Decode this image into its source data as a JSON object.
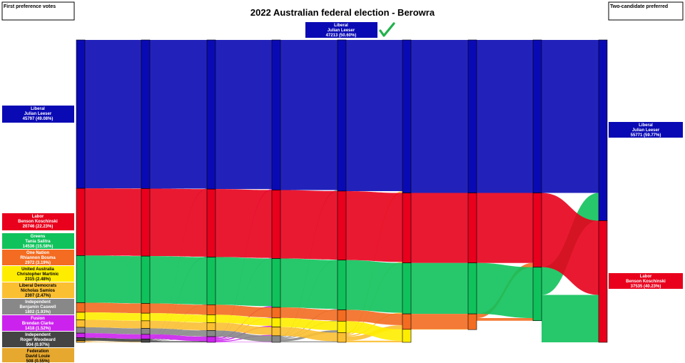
{
  "chart_data": {
    "type": "sankey",
    "title": "2022 Australian federal election - Berowra",
    "first_pref_header": "First preference votes",
    "tcp_header": "Two-candidate preferred",
    "winner": {
      "party": "Liberal",
      "name": "Julian Leeser",
      "votes": "47213 (50.60%)"
    },
    "colors": {
      "Liberal": "#0a0ab4",
      "Labor": "#e8001c",
      "Greens": "#10c25b",
      "One Nation": "#f36c21",
      "United Australia": "#ffed00",
      "Liberal Democrats": "#fbbf32",
      "Independent (Caswell)": "#888888",
      "Fusion": "#cc22ee",
      "Independent (Woodward)": "#444444",
      "Federation": "#e6a82e"
    },
    "first_preferences": [
      {
        "party": "Liberal",
        "name": "Julian Leeser",
        "votes": 45797,
        "label": "45797 (49.08%)"
      },
      {
        "party": "Labor",
        "name": "Benson Koschinski",
        "votes": 20746,
        "label": "20746 (22.23%)"
      },
      {
        "party": "Greens",
        "name": "Tania Salitra",
        "votes": 14536,
        "label": "14536 (15.58%)"
      },
      {
        "party": "One Nation",
        "name": "Rhiannon Bosma",
        "votes": 2972,
        "label": "2972 (3.19%)"
      },
      {
        "party": "United Australia",
        "name": "Christopher Martinic",
        "votes": 2315,
        "label": "2315 (2.48%)"
      },
      {
        "party": "Liberal Democrats",
        "name": "Nicholas Samios",
        "votes": 2307,
        "label": "2307 (2.47%)"
      },
      {
        "party": "Independent",
        "name": "Benjamin Caswell",
        "votes": 1802,
        "label": "1802 (1.93%)"
      },
      {
        "party": "Fusion",
        "name": "Brendan Clarke",
        "votes": 1418,
        "label": "1418 (1.52%)"
      },
      {
        "party": "Independent",
        "name": "Roger Woodward",
        "votes": 904,
        "label": "904 (0.97%)"
      },
      {
        "party": "Federation",
        "name": "David Louie",
        "votes": 508,
        "label": "508 (0.55%)"
      }
    ],
    "two_candidate_preferred": [
      {
        "party": "Liberal",
        "name": "Julian Leeser",
        "votes": 55771,
        "label": "55771 (59.77%)"
      },
      {
        "party": "Labor",
        "name": "Benson Koschinski",
        "votes": 37535,
        "label": "37535 (40.23%)"
      }
    ],
    "counts": [
      [
        45797,
        20746,
        14536,
        2972,
        2315,
        2307,
        1802,
        1418,
        904,
        508
      ],
      [
        45870,
        20840,
        14600,
        3010,
        2350,
        2340,
        1830,
        1430,
        1035,
        0
      ],
      [
        46030,
        20990,
        14700,
        3090,
        2420,
        2420,
        1900,
        1755,
        0,
        0
      ],
      [
        46320,
        21130,
        15080,
        3260,
        2800,
        2700,
        2015,
        0,
        0,
        0
      ],
      [
        46640,
        21290,
        15370,
        3480,
        3520,
        3005,
        0,
        0,
        0,
        0
      ],
      [
        47213,
        21600,
        15720,
        4770,
        4002,
        0,
        0,
        0,
        0,
        0
      ],
      [
        47213,
        21600,
        15720,
        4850,
        0,
        0,
        0,
        0,
        0,
        0
      ],
      [
        47213,
        22900,
        16530,
        0,
        0,
        0,
        0,
        0,
        0,
        0
      ],
      [
        55771,
        37535,
        0,
        0,
        0,
        0,
        0,
        0,
        0,
        0
      ]
    ]
  }
}
